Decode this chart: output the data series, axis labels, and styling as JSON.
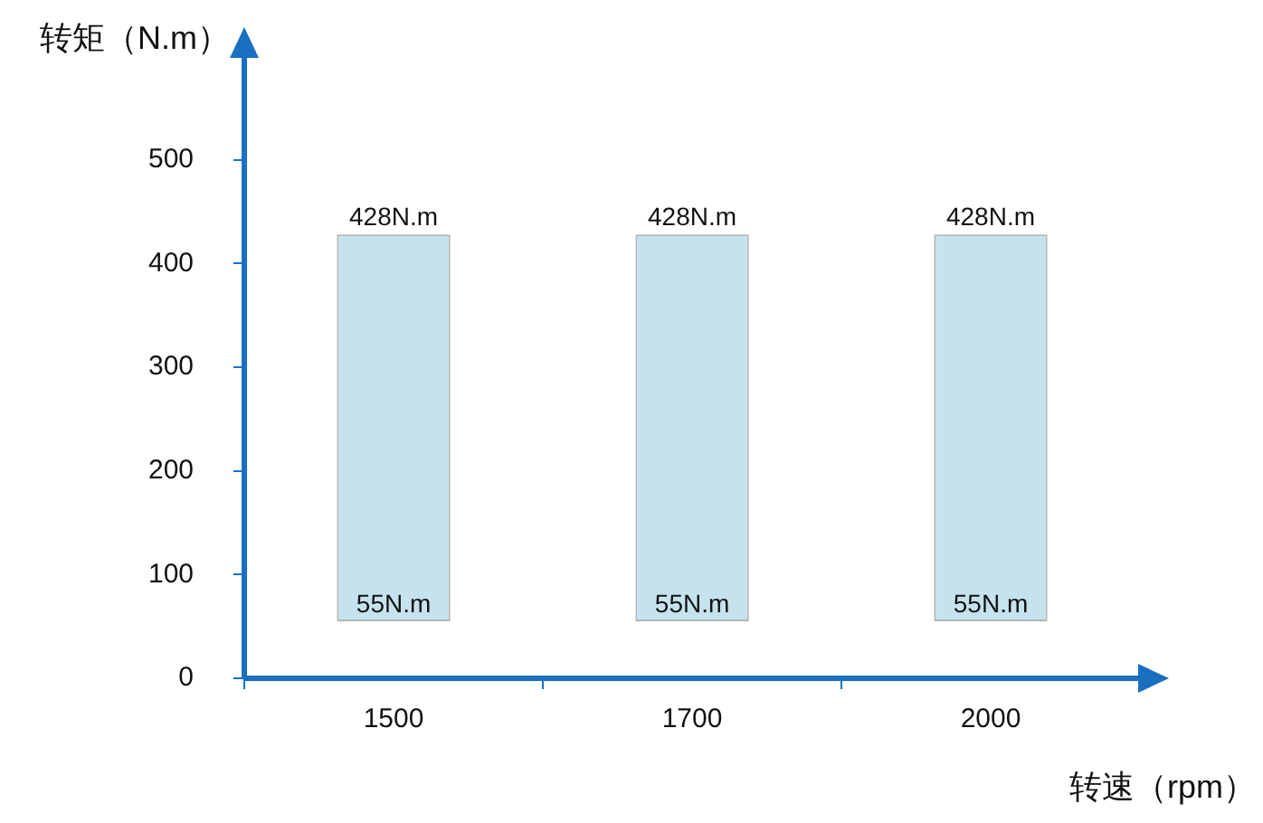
{
  "chart_data": {
    "type": "bar",
    "xlabel": "转速（rpm）",
    "ylabel": "转矩（N.m）",
    "categories": [
      "1500",
      "1700",
      "2000"
    ],
    "values": [
      373,
      373,
      373
    ],
    "base": [
      55,
      55,
      55
    ],
    "color": "#c5e3ee",
    "ylim": [
      0,
      600
    ],
    "yticks": [
      0,
      100,
      200,
      300,
      400,
      500
    ],
    "grid": false,
    "legend": false,
    "annotations": [
      {
        "text": "428N.m",
        "x": "1500",
        "y": 428
      },
      {
        "text": "428N.m",
        "x": "1700",
        "y": 428
      },
      {
        "text": "428N.m",
        "x": "2000",
        "y": 428
      },
      {
        "text": "55N.m",
        "x": "1500",
        "y": 55
      },
      {
        "text": "55N.m",
        "x": "1700",
        "y": 55
      },
      {
        "text": "55N.m",
        "x": "2000",
        "y": 55
      }
    ]
  }
}
